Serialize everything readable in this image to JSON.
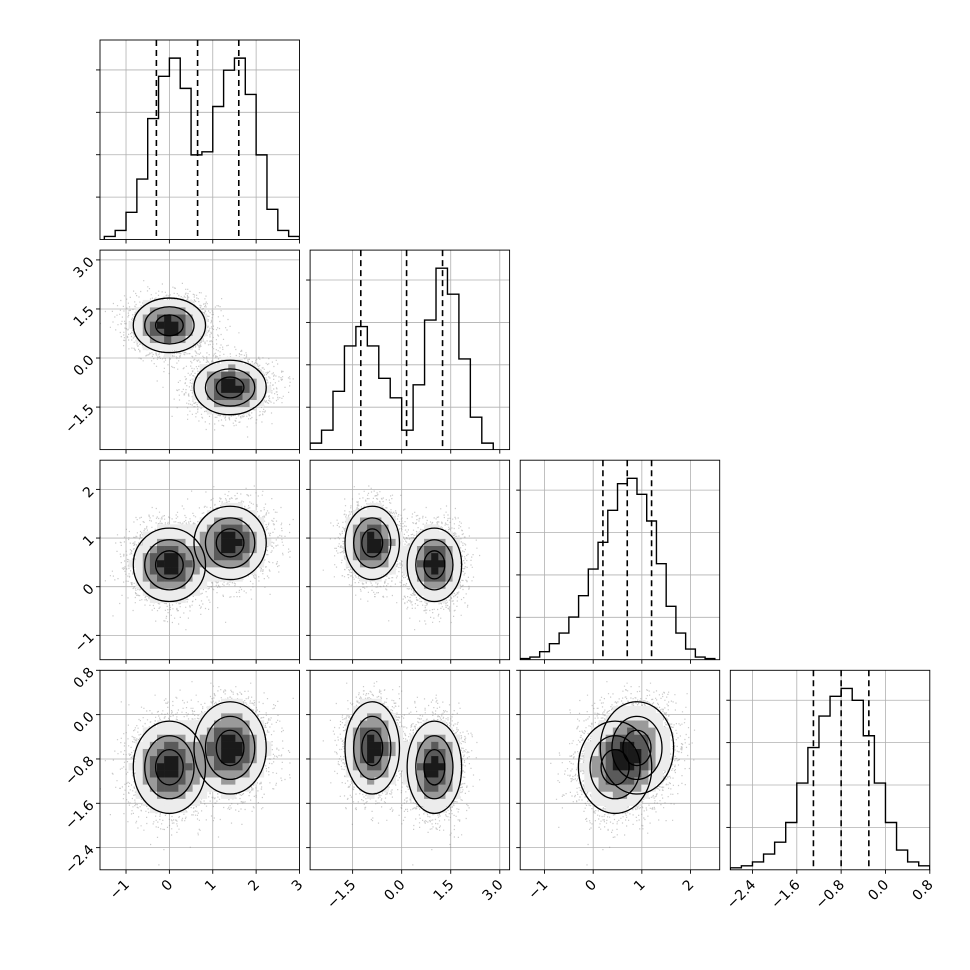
{
  "chart_data": {
    "type": "corner",
    "variables": 4,
    "axes": [
      {
        "range": [
          -1.6,
          3.0
        ],
        "ticks": [
          -1,
          0,
          1,
          2,
          3
        ],
        "tick_labels": [
          "−1",
          "0",
          "1",
          "2",
          "3"
        ]
      },
      {
        "range": [
          -2.8,
          3.3
        ],
        "ticks": [
          -1.5,
          0.0,
          1.5,
          3.0
        ],
        "tick_labels": [
          "−1.5",
          "0.0",
          "1.5",
          "3.0"
        ]
      },
      {
        "range": [
          -1.5,
          2.6
        ],
        "ticks": [
          -1,
          0,
          1,
          2
        ],
        "tick_labels": [
          "−1",
          "0",
          "1",
          "2"
        ]
      },
      {
        "range": [
          -2.8,
          0.8
        ],
        "ticks": [
          -2.4,
          -1.6,
          -0.8,
          0.0,
          0.8
        ],
        "tick_labels": [
          "−2.4",
          "−1.6",
          "−0.8",
          "0.0",
          "0.8"
        ]
      }
    ],
    "histograms": [
      {
        "var": 0,
        "bins": [
          -1.5,
          -1.25,
          -1.0,
          -0.75,
          -0.5,
          -0.25,
          0.0,
          0.25,
          0.5,
          0.75,
          1.0,
          1.25,
          1.5,
          1.75,
          2.0,
          2.25,
          2.5,
          2.75
        ],
        "counts": [
          0.5,
          1.5,
          4.5,
          10,
          20,
          27,
          30,
          25,
          14,
          14.5,
          22,
          28,
          30,
          24,
          14,
          5,
          1.5,
          0.5
        ],
        "quantiles": [
          -0.3,
          0.65,
          1.6
        ]
      },
      {
        "var": 1,
        "bins": [
          -2.8,
          -2.45,
          -2.1,
          -1.75,
          -1.4,
          -1.05,
          -0.7,
          -0.35,
          0.0,
          0.35,
          0.7,
          1.05,
          1.4,
          1.75,
          2.1,
          2.45
        ],
        "counts": [
          1,
          3,
          9,
          16,
          19,
          16,
          11,
          8,
          3,
          10,
          20,
          28,
          24,
          14,
          5,
          1
        ],
        "quantiles": [
          -1.25,
          0.15,
          1.25
        ]
      },
      {
        "var": 2,
        "bins": [
          -1.5,
          -1.3,
          -1.1,
          -0.9,
          -0.7,
          -0.5,
          -0.3,
          -0.1,
          0.1,
          0.3,
          0.5,
          0.7,
          0.9,
          1.1,
          1.3,
          1.5,
          1.7,
          1.9,
          2.1,
          2.3
        ],
        "counts": [
          0.2,
          0.5,
          1.5,
          3,
          5,
          8,
          12,
          17,
          22,
          28,
          33,
          34,
          31,
          26,
          18,
          10,
          5,
          2,
          0.5,
          0.2
        ],
        "quantiles": [
          0.2,
          0.7,
          1.2
        ]
      },
      {
        "var": 3,
        "bins": [
          -2.8,
          -2.6,
          -2.4,
          -2.2,
          -2.0,
          -1.8,
          -1.6,
          -1.4,
          -1.2,
          -1.0,
          -0.8,
          -0.6,
          -0.4,
          -0.2,
          0.0,
          0.2,
          0.4,
          0.6
        ],
        "counts": [
          0.5,
          1,
          2,
          4,
          7,
          12,
          22,
          31,
          39,
          44,
          46,
          43,
          34,
          22,
          12,
          5,
          2,
          1
        ],
        "quantiles": [
          -1.3,
          -0.8,
          -0.3
        ]
      }
    ],
    "clusters": [
      {
        "means": [
          0.0,
          1.0,
          0.45,
          -0.95
        ],
        "sd": [
          0.42,
          0.42,
          0.38,
          0.42
        ]
      },
      {
        "means": [
          1.4,
          -0.9,
          0.9,
          -0.6
        ],
        "sd": [
          0.42,
          0.42,
          0.38,
          0.42
        ]
      }
    ],
    "quantile_style": "dashed",
    "grid": true
  }
}
